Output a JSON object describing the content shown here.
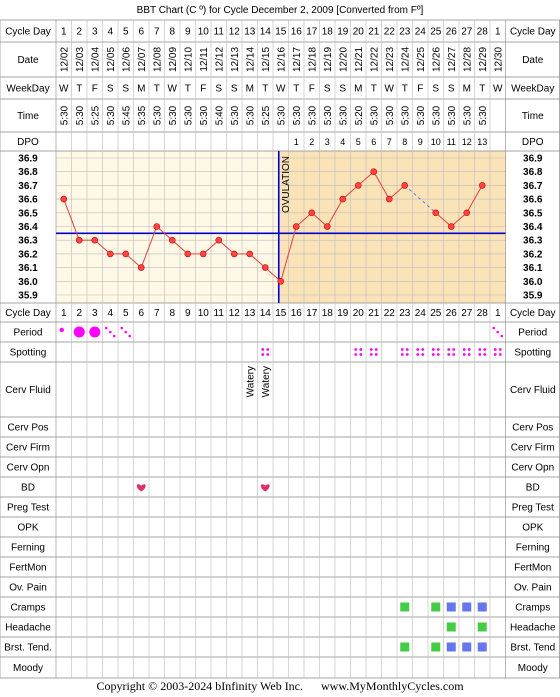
{
  "title": "BBT Chart (C º) for Cycle December 2, 2009  [Converted from Fº]",
  "footer": {
    "copyright": "Copyright © 2003-2024 bInfinity Web Inc.",
    "site": "www.MyMonthlyCycles.com"
  },
  "colors": {
    "preOvulationBg": "#fff8e6",
    "postOvulationBg": "#fbe3b8",
    "grid": "#bbbbbb",
    "line": "#e04040",
    "coverline": "#0000cc",
    "ovulation": "#0000cc",
    "period": "#ff00ff",
    "green": "#44cc44",
    "blue": "#6677ee",
    "heart": "#e0306a",
    "labelBg": "#f0f0f0"
  },
  "row_labels": {
    "cycle_day": "Cycle Day",
    "date": "Date",
    "weekday": "WeekDay",
    "time": "Time",
    "dpo": "DPO",
    "period": "Period",
    "spotting": "Spotting",
    "cerv_fluid": "Cerv Fluid",
    "cerv_pos": "Cerv Pos",
    "cerv_firm": "Cerv Firm",
    "cerv_opn": "Cerv Opn",
    "bd": "BD",
    "preg_test": "Preg Test",
    "opk": "OPK",
    "ferning": "Ferning",
    "fertmon": "FertMon",
    "ov_pain": "Ov. Pain",
    "cramps": "Cramps",
    "headache": "Headache",
    "brst_tend": "Brst. Tend.",
    "brst_tend_right": "Brst. Tend",
    "moody": "Moody"
  },
  "cycle_days": [
    "1",
    "2",
    "3",
    "4",
    "5",
    "6",
    "7",
    "8",
    "9",
    "10",
    "11",
    "12",
    "13",
    "14",
    "15",
    "16",
    "17",
    "18",
    "19",
    "20",
    "21",
    "22",
    "23",
    "24",
    "25",
    "26",
    "27",
    "28",
    "1"
  ],
  "dates": [
    "12/02",
    "12/03",
    "12/04",
    "12/05",
    "12/06",
    "12/07",
    "12/08",
    "12/09",
    "12/10",
    "12/11",
    "12/12",
    "12/13",
    "12/14",
    "12/15",
    "12/16",
    "12/17",
    "12/18",
    "12/19",
    "12/20",
    "12/21",
    "12/22",
    "12/23",
    "12/24",
    "12/25",
    "12/26",
    "12/27",
    "12/28",
    "12/29",
    "12/30"
  ],
  "weekdays": [
    "W",
    "T",
    "F",
    "S",
    "S",
    "M",
    "T",
    "W",
    "T",
    "F",
    "S",
    "S",
    "M",
    "T",
    "W",
    "T",
    "F",
    "S",
    "S",
    "M",
    "T",
    "W",
    "T",
    "F",
    "S",
    "S",
    "M",
    "T",
    "W"
  ],
  "times": [
    "5:30",
    "5:30",
    "5:25",
    "5:30",
    "5:45",
    "5:35",
    "5:30",
    "5:30",
    "5:30",
    "5:30",
    "5:40",
    "5:30",
    "5:30",
    "5:25",
    "5:30",
    "5:30",
    "5:30",
    "5:30",
    "5:30",
    "5:20",
    "5:30",
    "5:30",
    "5:30",
    "5:30",
    "5:30",
    "5:30",
    "5:30",
    "5:30",
    ""
  ],
  "dpo": [
    "",
    "",
    "",
    "",
    "",
    "",
    "",
    "",
    "",
    "",
    "",
    "",
    "",
    "",
    "",
    "1",
    "2",
    "3",
    "4",
    "5",
    "6",
    "7",
    "8",
    "9",
    "10",
    "11",
    "12",
    "13",
    ""
  ],
  "ovulation_label": "OVULATION",
  "cerv_fluid": [
    "",
    "",
    "",
    "",
    "",
    "",
    "",
    "",
    "",
    "",
    "",
    "",
    "Watery",
    "Watery",
    "",
    "",
    "",
    "",
    "",
    "",
    "",
    "",
    "",
    "",
    "",
    "",
    "",
    "",
    ""
  ],
  "chart_data": {
    "type": "line",
    "title": "BBT Chart (C º) for Cycle December 2, 2009  [Converted from Fº]",
    "x": [
      1,
      2,
      3,
      4,
      5,
      6,
      7,
      8,
      9,
      10,
      11,
      12,
      13,
      14,
      15,
      16,
      17,
      18,
      19,
      20,
      21,
      22,
      23,
      24,
      25,
      26,
      27,
      28
    ],
    "y": [
      36.6,
      36.3,
      36.3,
      36.2,
      36.2,
      36.1,
      36.4,
      36.3,
      36.2,
      36.2,
      36.3,
      36.2,
      36.2,
      36.1,
      36.0,
      36.4,
      36.5,
      36.4,
      36.6,
      36.7,
      36.8,
      36.6,
      36.7,
      null,
      36.5,
      36.4,
      36.5,
      36.7
    ],
    "dashed_segment": [
      23,
      25
    ],
    "coverline": 36.35,
    "ovulation_day": 15,
    "ylim": [
      35.9,
      36.9
    ],
    "y_ticks": [
      "36.9",
      "36.8",
      "36.7",
      "36.6",
      "36.5",
      "36.4",
      "36.3",
      "36.2",
      "36.1",
      "36.0",
      "35.9"
    ],
    "grid": true
  },
  "period_marks": [
    {
      "col": 0,
      "type": "small-dot"
    },
    {
      "col": 1,
      "type": "big-dot"
    },
    {
      "col": 2,
      "type": "big-dot"
    },
    {
      "col": 3,
      "type": "dots"
    },
    {
      "col": 4,
      "type": "dots"
    },
    {
      "col": 28,
      "type": "dots"
    }
  ],
  "spotting_cols": [
    13,
    19,
    20,
    22,
    23,
    24,
    25,
    26,
    27,
    28
  ],
  "bd_cols": [
    5,
    13
  ],
  "cramps": [
    {
      "col": 22,
      "color": "green"
    },
    {
      "col": 24,
      "color": "green"
    },
    {
      "col": 25,
      "color": "blue"
    },
    {
      "col": 26,
      "color": "blue"
    },
    {
      "col": 27,
      "color": "blue"
    }
  ],
  "headache": [
    {
      "col": 25,
      "color": "green"
    },
    {
      "col": 27,
      "color": "green"
    }
  ],
  "brst_tend": [
    {
      "col": 22,
      "color": "green"
    },
    {
      "col": 24,
      "color": "green"
    },
    {
      "col": 25,
      "color": "blue"
    },
    {
      "col": 26,
      "color": "blue"
    },
    {
      "col": 27,
      "color": "blue"
    }
  ]
}
